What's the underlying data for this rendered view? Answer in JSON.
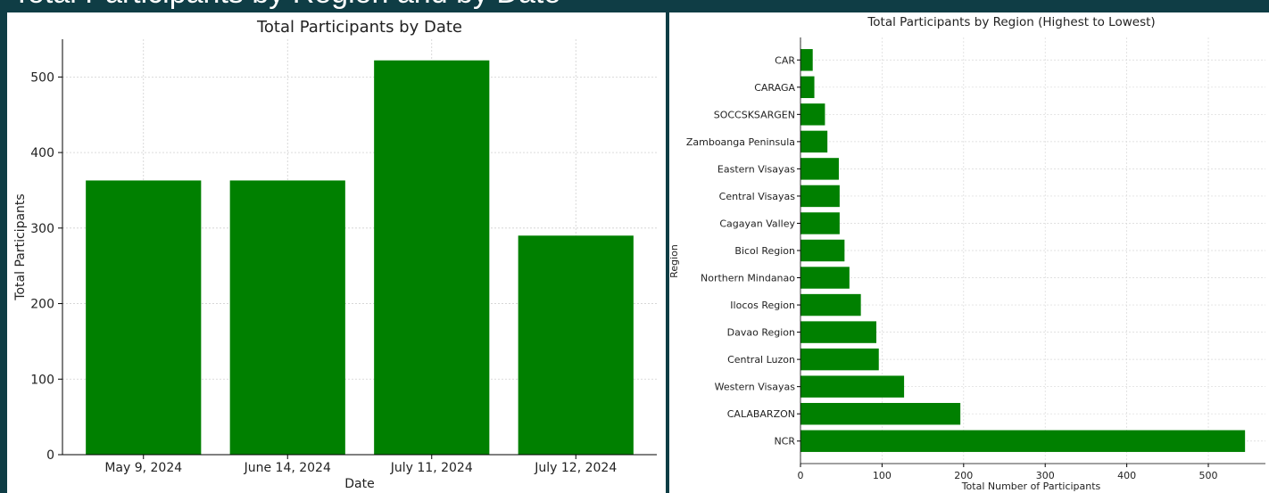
{
  "slide": {
    "title": "Total Participants by Region and by Date"
  },
  "colors": {
    "bar": "#008000",
    "background": "#0f3d45"
  },
  "chart_data": [
    {
      "type": "bar",
      "title": "Total Participants by Date",
      "xlabel": "Date",
      "ylabel": "Total Participants",
      "categories": [
        "May 9, 2024",
        "June 14, 2024",
        "July 11, 2024",
        "July 12, 2024"
      ],
      "values": [
        363,
        363,
        522,
        290
      ],
      "ylim": [
        0,
        550
      ],
      "yticks": [
        0,
        100,
        200,
        300,
        400,
        500
      ],
      "grid": true
    },
    {
      "type": "bar",
      "orientation": "horizontal",
      "title": "Total Participants by Region (Highest to Lowest)",
      "xlabel": "Total Number of Participants",
      "ylabel": "Region",
      "categories": [
        "NCR",
        "CALABARZON",
        "Western Visayas",
        "Central Luzon",
        "Davao Region",
        "Ilocos Region",
        "Northern Mindanao",
        "Bicol Region",
        "Cagayan Valley",
        "Central Visayas",
        "Eastern Visayas",
        "Zamboanga Peninsula",
        "SOCCSKSARGEN",
        "CARAGA",
        "CAR"
      ],
      "values": [
        545,
        196,
        127,
        96,
        93,
        74,
        60,
        54,
        48,
        48,
        47,
        33,
        30,
        17,
        15
      ],
      "xlim": [
        0,
        570
      ],
      "xticks": [
        0,
        100,
        200,
        300,
        400,
        500
      ],
      "grid": true
    }
  ]
}
